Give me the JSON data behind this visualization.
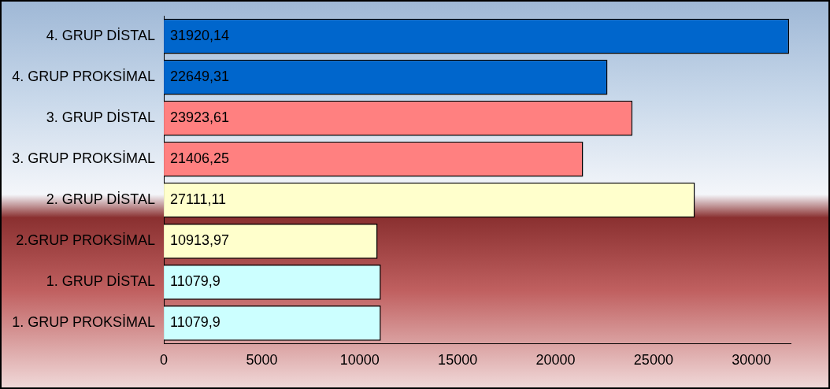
{
  "chart_data": {
    "type": "bar",
    "orientation": "horizontal",
    "categories": [
      "4. GRUP DİSTAL",
      "4. GRUP PROKSİMAL",
      "3. GRUP DİSTAL",
      "3. GRUP PROKSİMAL",
      "2. GRUP DİSTAL",
      "2.GRUP PROKSİMAL",
      "1. GRUP DİSTAL",
      "1. GRUP PROKSİMAL"
    ],
    "values": [
      31920.14,
      22649.31,
      23923.61,
      21406.25,
      27111.11,
      10913.97,
      11079.9,
      11079.9
    ],
    "value_labels": [
      "31920,14",
      "22649,31",
      "23923,61",
      "21406,25",
      "27111,11",
      "10913,97",
      "11079,9",
      "11079,9"
    ],
    "colors": [
      "#0066cc",
      "#0066cc",
      "#ff8080",
      "#ff8080",
      "#ffffcc",
      "#ffffcc",
      "#ccffff",
      "#ccffff"
    ],
    "xlim": [
      0,
      32000
    ],
    "xticks": [
      0,
      5000,
      10000,
      15000,
      20000,
      25000,
      30000
    ],
    "grid": false,
    "legend": false
  }
}
